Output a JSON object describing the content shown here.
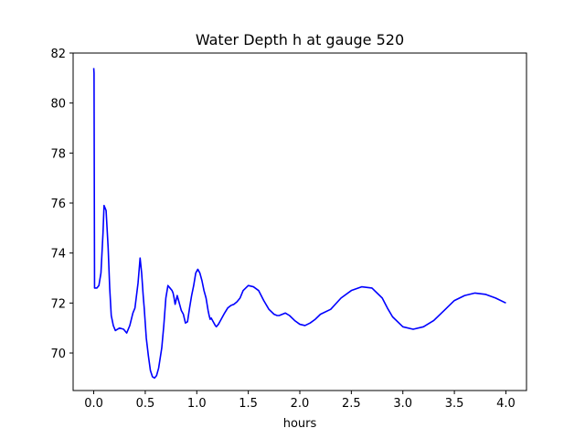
{
  "chart_data": {
    "type": "line",
    "title": "Water Depth h at gauge 520",
    "xlabel": "hours",
    "ylabel": "",
    "xlim": [
      -0.2,
      4.2
    ],
    "ylim": [
      68.5,
      82
    ],
    "xticks": [
      0.0,
      0.5,
      1.0,
      1.5,
      2.0,
      2.5,
      3.0,
      3.5,
      4.0
    ],
    "xtick_labels": [
      "0.0",
      "0.5",
      "1.0",
      "1.5",
      "2.0",
      "2.5",
      "3.0",
      "3.5",
      "4.0"
    ],
    "yticks": [
      70,
      72,
      74,
      76,
      78,
      80,
      82
    ],
    "ytick_labels": [
      "70",
      "72",
      "74",
      "76",
      "78",
      "80",
      "82"
    ],
    "grid": false,
    "series": [
      {
        "color": "#0000ff",
        "x": [
          0.0,
          0.003,
          0.008,
          0.015,
          0.03,
          0.05,
          0.07,
          0.09,
          0.1,
          0.12,
          0.14,
          0.155,
          0.17,
          0.19,
          0.21,
          0.25,
          0.29,
          0.32,
          0.35,
          0.38,
          0.4,
          0.43,
          0.45,
          0.465,
          0.48,
          0.49,
          0.5,
          0.51,
          0.53,
          0.55,
          0.57,
          0.59,
          0.61,
          0.63,
          0.66,
          0.68,
          0.7,
          0.72,
          0.74,
          0.76,
          0.77,
          0.78,
          0.79,
          0.81,
          0.83,
          0.85,
          0.87,
          0.89,
          0.91,
          0.93,
          0.95,
          0.97,
          0.99,
          1.01,
          1.03,
          1.05,
          1.07,
          1.09,
          1.11,
          1.12,
          1.13,
          1.14,
          1.16,
          1.18,
          1.19,
          1.21,
          1.23,
          1.25,
          1.27,
          1.3,
          1.33,
          1.36,
          1.39,
          1.42,
          1.45,
          1.5,
          1.55,
          1.6,
          1.65,
          1.7,
          1.75,
          1.78,
          1.8,
          1.83,
          1.86,
          1.9,
          1.95,
          2.0,
          2.05,
          2.1,
          2.15,
          2.2,
          2.3,
          2.4,
          2.5,
          2.6,
          2.7,
          2.8,
          2.85,
          2.9,
          3.0,
          3.1,
          3.2,
          3.3,
          3.4,
          3.5,
          3.6,
          3.7,
          3.8,
          3.9,
          4.0
        ],
        "y": [
          81.4,
          81.2,
          72.6,
          72.6,
          72.6,
          72.7,
          73.2,
          74.8,
          75.9,
          75.7,
          74.2,
          72.6,
          71.5,
          71.1,
          70.9,
          71.0,
          70.95,
          70.8,
          71.1,
          71.6,
          71.8,
          72.8,
          73.8,
          73.2,
          72.3,
          71.8,
          71.2,
          70.6,
          69.9,
          69.3,
          69.05,
          69.0,
          69.1,
          69.4,
          70.2,
          71.1,
          72.2,
          72.7,
          72.6,
          72.5,
          72.4,
          72.2,
          71.95,
          72.3,
          72.0,
          71.7,
          71.55,
          71.2,
          71.25,
          71.8,
          72.3,
          72.7,
          73.2,
          73.35,
          73.2,
          72.9,
          72.5,
          72.2,
          71.7,
          71.5,
          71.35,
          71.4,
          71.25,
          71.1,
          71.05,
          71.15,
          71.3,
          71.45,
          71.6,
          71.8,
          71.9,
          71.95,
          72.05,
          72.2,
          72.5,
          72.7,
          72.65,
          72.5,
          72.1,
          71.75,
          71.55,
          71.5,
          71.5,
          71.55,
          71.6,
          71.5,
          71.3,
          71.15,
          71.1,
          71.2,
          71.35,
          71.55,
          71.75,
          72.2,
          72.5,
          72.65,
          72.6,
          72.2,
          71.8,
          71.45,
          71.05,
          70.95,
          71.05,
          71.3,
          71.7,
          72.1,
          72.3,
          72.4,
          72.35,
          72.2,
          72.0
        ]
      }
    ]
  }
}
